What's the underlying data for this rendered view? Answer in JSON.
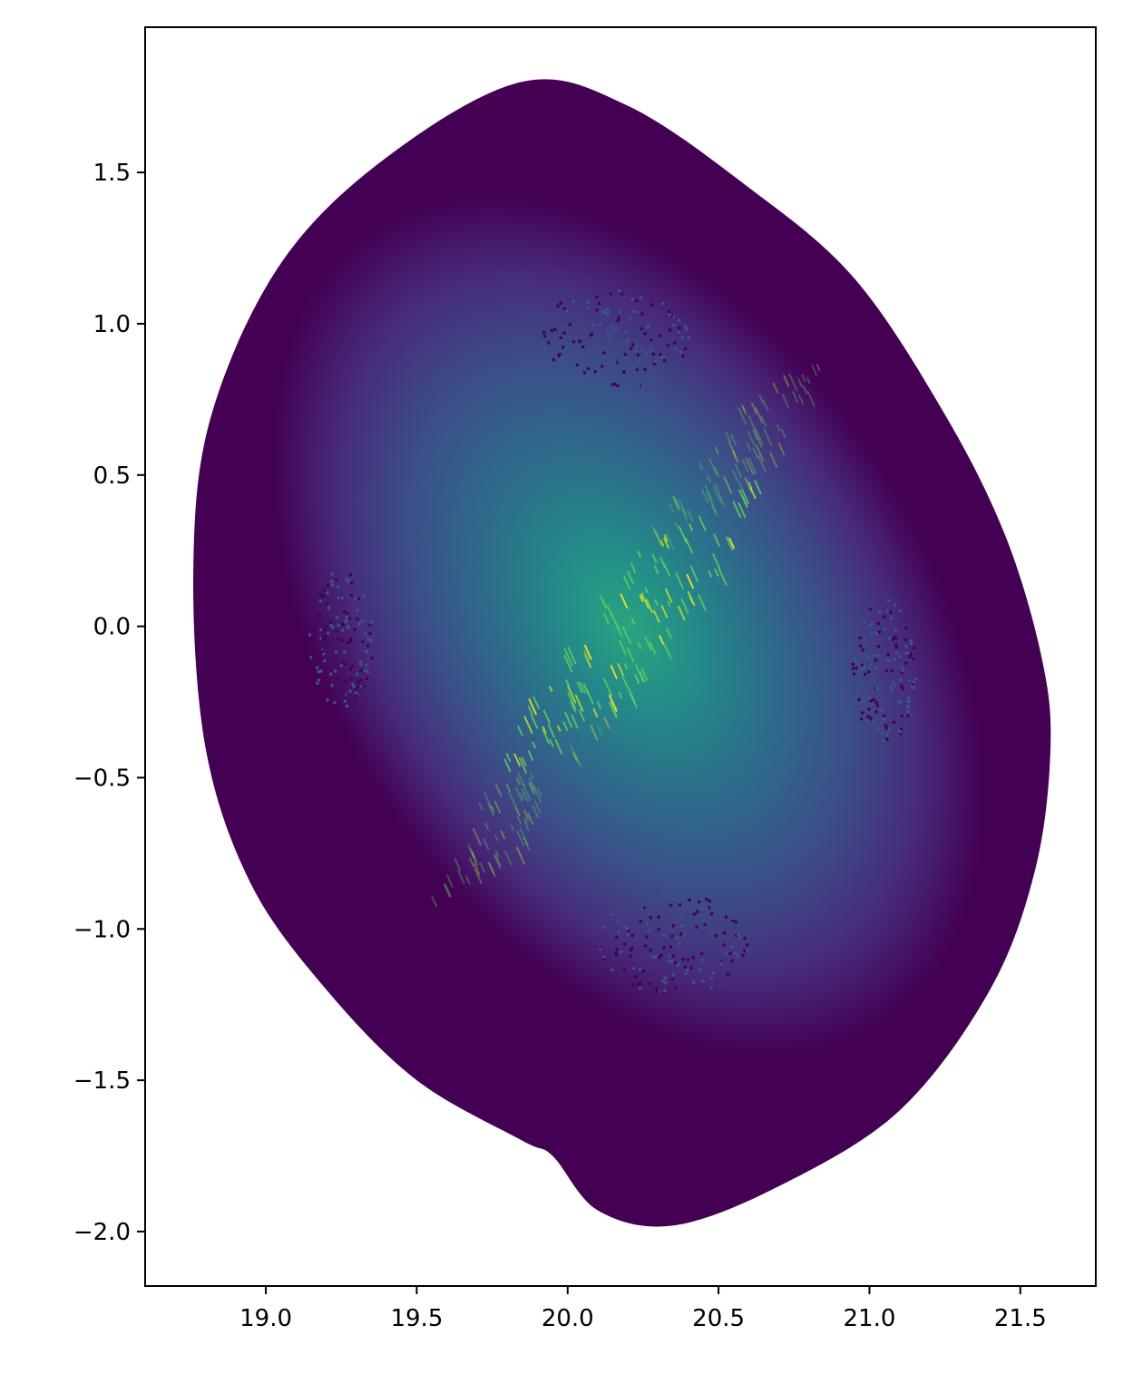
{
  "chart_data": {
    "type": "scatter",
    "title": "",
    "xlabel": "",
    "ylabel": "",
    "xlim": [
      18.6,
      21.75
    ],
    "ylim": [
      -2.18,
      1.98
    ],
    "grid": false,
    "legend": "none",
    "colormap": "viridis",
    "x_ticks": [
      {
        "value": 19.0,
        "label": "19.0"
      },
      {
        "value": 19.5,
        "label": "19.5"
      },
      {
        "value": 20.0,
        "label": "20.0"
      },
      {
        "value": 20.5,
        "label": "20.5"
      },
      {
        "value": 21.0,
        "label": "21.0"
      },
      {
        "value": 21.5,
        "label": "21.5"
      }
    ],
    "y_ticks": [
      {
        "value": 1.5,
        "label": "1.5"
      },
      {
        "value": 1.0,
        "label": "1.0"
      },
      {
        "value": 0.5,
        "label": "0.5"
      },
      {
        "value": 0.0,
        "label": "0.0"
      },
      {
        "value": -0.5,
        "label": "−0.5"
      },
      {
        "value": -1.0,
        "label": "−1.0"
      },
      {
        "value": -1.5,
        "label": "−1.5"
      },
      {
        "value": -2.0,
        "label": "−2.0"
      }
    ],
    "outline": [
      [
        19.85,
        1.8
      ],
      [
        20.2,
        1.72
      ],
      [
        20.6,
        1.45
      ],
      [
        20.95,
        1.15
      ],
      [
        21.25,
        0.7
      ],
      [
        21.45,
        0.3
      ],
      [
        21.57,
        -0.1
      ],
      [
        21.6,
        -0.4
      ],
      [
        21.55,
        -0.8
      ],
      [
        21.4,
        -1.2
      ],
      [
        21.1,
        -1.6
      ],
      [
        20.7,
        -1.85
      ],
      [
        20.35,
        -1.98
      ],
      [
        20.1,
        -1.93
      ],
      [
        19.95,
        -1.75
      ],
      [
        19.85,
        -1.7
      ],
      [
        19.5,
        -1.5
      ],
      [
        19.2,
        -1.2
      ],
      [
        18.95,
        -0.85
      ],
      [
        18.8,
        -0.4
      ],
      [
        18.76,
        0.2
      ],
      [
        18.82,
        0.7
      ],
      [
        19.05,
        1.2
      ],
      [
        19.4,
        1.55
      ]
    ],
    "center": [
      20.2,
      0.0
    ],
    "tilt_deg": -32,
    "color_scale": [
      {
        "level": 0.0,
        "color": "#440154"
      },
      {
        "level": 0.25,
        "color": "#472d7b"
      },
      {
        "level": 0.45,
        "color": "#3b528b"
      },
      {
        "level": 0.65,
        "color": "#2c728e"
      },
      {
        "level": 0.8,
        "color": "#21918c"
      },
      {
        "level": 1.0,
        "color": "#27ad81"
      }
    ],
    "highlight_colors": [
      "#fde725",
      "#b5de2b",
      "#5ec962"
    ],
    "sparse_clusters": [
      {
        "center": [
          20.15,
          0.95
        ],
        "label": "upper"
      },
      {
        "center": [
          20.35,
          -1.05
        ],
        "label": "lower"
      },
      {
        "center": [
          19.25,
          -0.05
        ],
        "label": "left"
      },
      {
        "center": [
          21.05,
          -0.15
        ],
        "label": "right"
      }
    ]
  }
}
